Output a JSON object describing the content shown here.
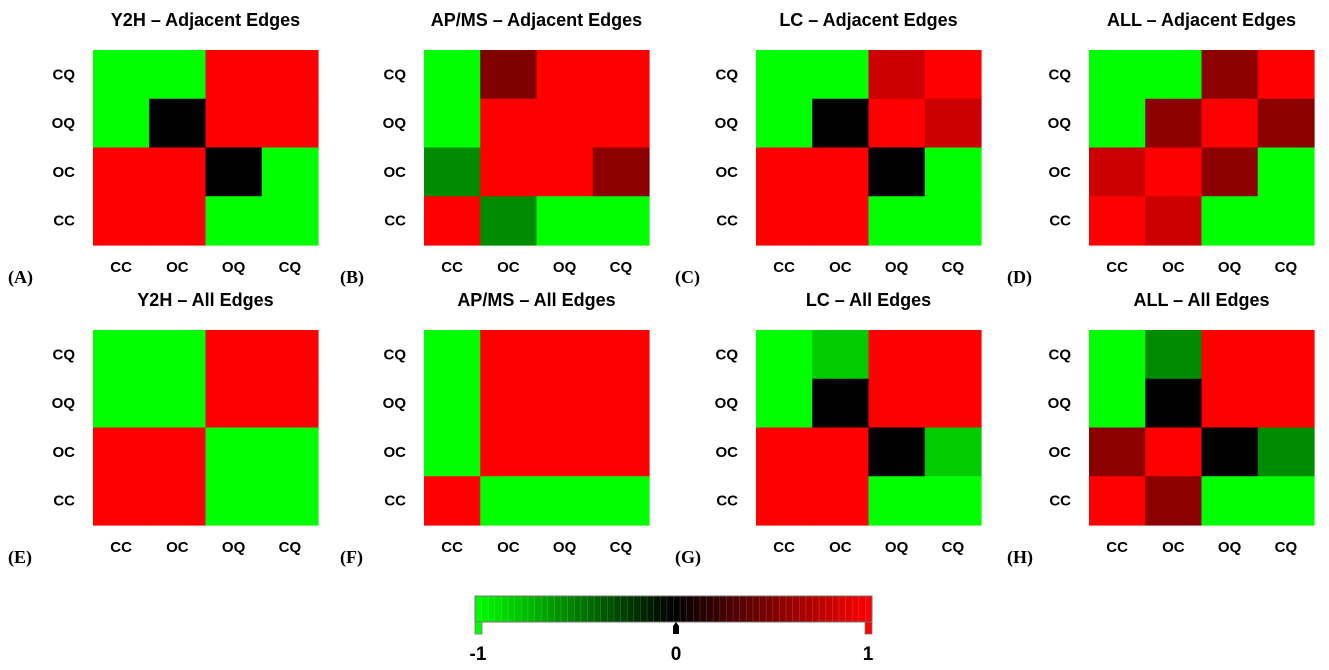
{
  "colors": {
    "neg": "#00ff00",
    "zero": "#000000",
    "pos": "#ff0000"
  },
  "colorbar": {
    "min_label": "-1",
    "mid_label": "0",
    "max_label": "1",
    "range": [
      -1,
      1
    ]
  },
  "chart_data": [
    {
      "type": "heatmap",
      "panel_label": "(A)",
      "title": "Y2H – Adjacent Edges",
      "x_categories": [
        "CC",
        "OC",
        "OQ",
        "CQ"
      ],
      "y_categories": [
        "CQ",
        "OQ",
        "OC",
        "CC"
      ],
      "values": [
        [
          -1,
          -1,
          1,
          1
        ],
        [
          -1,
          0,
          1,
          1
        ],
        [
          1,
          1,
          0,
          -1
        ],
        [
          1,
          1,
          -1,
          -1
        ]
      ]
    },
    {
      "type": "heatmap",
      "panel_label": "(B)",
      "title": "AP/MS – Adjacent Edges",
      "x_categories": [
        "CC",
        "OC",
        "OQ",
        "CQ"
      ],
      "y_categories": [
        "CQ",
        "OQ",
        "OC",
        "CC"
      ],
      "values": [
        [
          -1,
          0.5,
          1,
          1
        ],
        [
          -1,
          1,
          1,
          1
        ],
        [
          -0.55,
          1,
          1,
          0.55
        ],
        [
          1,
          -0.55,
          -1,
          -1
        ]
      ]
    },
    {
      "type": "heatmap",
      "panel_label": "(C)",
      "title": "LC – Adjacent Edges",
      "x_categories": [
        "CC",
        "OC",
        "OQ",
        "CQ"
      ],
      "y_categories": [
        "CQ",
        "OQ",
        "OC",
        "CC"
      ],
      "values": [
        [
          -1,
          -1,
          0.8,
          1
        ],
        [
          -1,
          0,
          1,
          0.8
        ],
        [
          1,
          1,
          0,
          -1
        ],
        [
          1,
          1,
          -1,
          -1
        ]
      ]
    },
    {
      "type": "heatmap",
      "panel_label": "(D)",
      "title": "ALL – Adjacent Edges",
      "x_categories": [
        "CC",
        "OC",
        "OQ",
        "CQ"
      ],
      "y_categories": [
        "CQ",
        "OQ",
        "OC",
        "CC"
      ],
      "values": [
        [
          -1,
          -1,
          0.55,
          1
        ],
        [
          -1,
          0.55,
          1,
          0.55
        ],
        [
          0.8,
          1,
          0.55,
          -1
        ],
        [
          1,
          0.8,
          -1,
          -1
        ]
      ]
    },
    {
      "type": "heatmap",
      "panel_label": "(E)",
      "title": "Y2H – All Edges",
      "x_categories": [
        "CC",
        "OC",
        "OQ",
        "CQ"
      ],
      "y_categories": [
        "CQ",
        "OQ",
        "OC",
        "CC"
      ],
      "values": [
        [
          -1,
          -1,
          1,
          1
        ],
        [
          -1,
          -1,
          1,
          1
        ],
        [
          1,
          1,
          -1,
          -1
        ],
        [
          1,
          1,
          -1,
          -1
        ]
      ]
    },
    {
      "type": "heatmap",
      "panel_label": "(F)",
      "title": "AP/MS – All Edges",
      "x_categories": [
        "CC",
        "OC",
        "OQ",
        "CQ"
      ],
      "y_categories": [
        "CQ",
        "OQ",
        "OC",
        "CC"
      ],
      "values": [
        [
          -1,
          1,
          1,
          1
        ],
        [
          -1,
          1,
          1,
          1
        ],
        [
          -1,
          1,
          1,
          1
        ],
        [
          1,
          -1,
          -1,
          -1
        ]
      ]
    },
    {
      "type": "heatmap",
      "panel_label": "(G)",
      "title": "LC – All Edges",
      "x_categories": [
        "CC",
        "OC",
        "OQ",
        "CQ"
      ],
      "y_categories": [
        "CQ",
        "OQ",
        "OC",
        "CC"
      ],
      "values": [
        [
          -1,
          -0.8,
          1,
          1
        ],
        [
          -1,
          0,
          1,
          1
        ],
        [
          1,
          1,
          0,
          -0.8
        ],
        [
          1,
          1,
          -1,
          -1
        ]
      ]
    },
    {
      "type": "heatmap",
      "panel_label": "(H)",
      "title": "ALL – All Edges",
      "x_categories": [
        "CC",
        "OC",
        "OQ",
        "CQ"
      ],
      "y_categories": [
        "CQ",
        "OQ",
        "OC",
        "CC"
      ],
      "values": [
        [
          -1,
          -0.55,
          1,
          1
        ],
        [
          -1,
          0,
          1,
          1
        ],
        [
          0.55,
          1,
          0,
          -0.55
        ],
        [
          1,
          0.55,
          -1,
          -1
        ]
      ]
    }
  ]
}
